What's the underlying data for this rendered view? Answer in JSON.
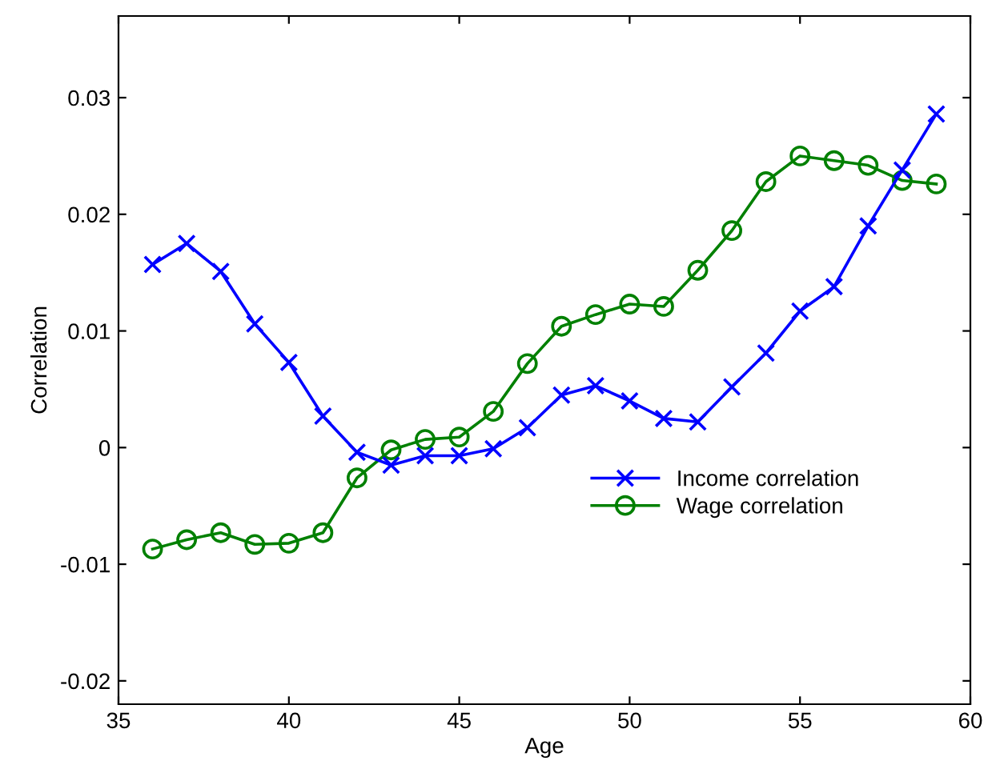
{
  "chart_data": {
    "type": "line",
    "xlabel": "Age",
    "ylabel": "Correlation",
    "x": [
      36,
      37,
      38,
      39,
      40,
      41,
      42,
      43,
      44,
      45,
      46,
      47,
      48,
      49,
      50,
      51,
      52,
      53,
      54,
      55,
      56,
      57,
      58,
      59
    ],
    "series": [
      {
        "name": "Income correlation",
        "color": "#0000ff",
        "marker": "cross",
        "values": [
          0.0157,
          0.0175,
          0.0151,
          0.0106,
          0.0073,
          0.0027,
          -0.0004,
          -0.0015,
          -0.0007,
          -0.0007,
          -0.0001,
          0.0017,
          0.0045,
          0.0053,
          0.004,
          0.0025,
          0.0022,
          0.0052,
          0.0081,
          0.0117,
          0.0138,
          0.019,
          0.0238,
          0.0286
        ]
      },
      {
        "name": "Wage correlation",
        "color": "#008000",
        "marker": "circle",
        "values": [
          -0.0087,
          -0.0079,
          -0.0073,
          -0.0083,
          -0.0082,
          -0.0073,
          -0.0026,
          -0.0002,
          0.0007,
          0.0009,
          0.0031,
          0.0072,
          0.0104,
          0.0114,
          0.0123,
          0.0121,
          0.0152,
          0.0186,
          0.0228,
          0.025,
          0.0246,
          0.0242,
          0.0229,
          0.0226
        ]
      }
    ],
    "xlim": [
      35,
      60
    ],
    "xticks": [
      35,
      40,
      45,
      50,
      55,
      60
    ],
    "ylim": [
      -0.022,
      0.037
    ],
    "yticks": [
      -0.02,
      -0.01,
      0,
      0.01,
      0.02,
      0.03
    ],
    "grid": false,
    "legend": "bottom right",
    "line_style": "solid"
  }
}
